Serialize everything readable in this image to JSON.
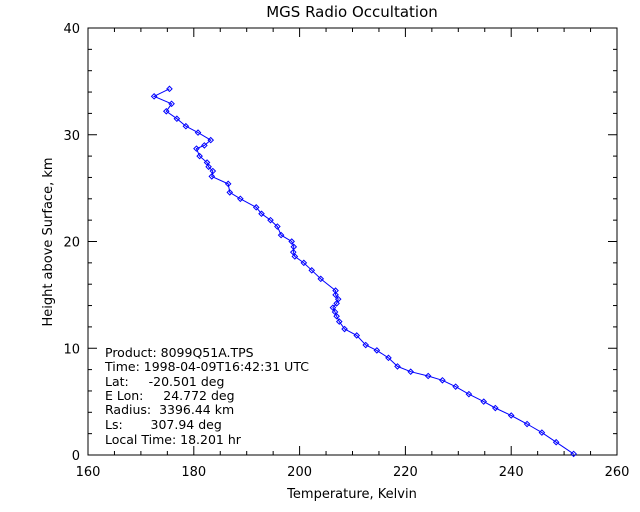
{
  "chart_data": {
    "type": "line",
    "title": "MGS Radio Occultation",
    "xlabel": "Temperature, Kelvin",
    "ylabel": "Height above Surface, km",
    "xlim": [
      160,
      260
    ],
    "ylim": [
      0,
      40
    ],
    "xticks": [
      "160",
      "180",
      "200",
      "220",
      "240",
      "260"
    ],
    "yticks": [
      "0",
      "10",
      "20",
      "30",
      "40"
    ],
    "grid": false,
    "line_color": "#0000ff",
    "marker": "diamond",
    "series": [
      {
        "x": [
          251.8,
          248.5,
          245.8,
          243.0,
          240.0,
          237.0,
          234.8,
          232.0,
          229.5,
          227.0,
          224.3,
          221.0,
          218.5,
          216.8,
          214.6,
          212.5,
          210.8,
          208.5,
          207.5,
          207.0,
          206.7,
          206.3,
          207.0,
          207.3,
          206.8,
          206.8,
          204.0,
          202.3,
          200.8,
          199.1,
          198.8,
          198.9,
          198.5,
          196.5,
          195.8,
          194.5,
          192.8,
          191.8,
          188.8,
          186.8,
          186.5,
          183.4,
          183.6,
          182.8,
          182.5,
          181.1,
          180.5,
          182.0,
          183.2,
          180.8,
          178.5,
          176.8,
          174.8,
          175.8,
          172.5,
          175.4
        ],
        "y": [
          0.1,
          1.2,
          2.1,
          2.9,
          3.7,
          4.4,
          5.0,
          5.7,
          6.4,
          7.0,
          7.4,
          7.8,
          8.3,
          9.1,
          9.8,
          10.3,
          11.2,
          11.8,
          12.5,
          13.0,
          13.4,
          13.8,
          14.2,
          14.6,
          15.0,
          15.4,
          16.5,
          17.3,
          18.0,
          18.6,
          19.0,
          19.5,
          20.0,
          20.6,
          21.4,
          22.0,
          22.6,
          23.2,
          24.0,
          24.6,
          25.4,
          26.1,
          26.6,
          27.0,
          27.4,
          28.0,
          28.7,
          29.0,
          29.5,
          30.2,
          30.8,
          31.5,
          32.2,
          32.9,
          33.6,
          34.3
        ]
      }
    ]
  },
  "info_lines": [
    "Product: 8099Q51A.TPS",
    "Time: 1998-04-09T16:42:31 UTC",
    "Lat:     -20.501 deg",
    "E Lon:     24.772 deg",
    "Radius:  3396.44 km",
    "Ls:       307.94 deg",
    "Local Time: 18.201 hr"
  ]
}
